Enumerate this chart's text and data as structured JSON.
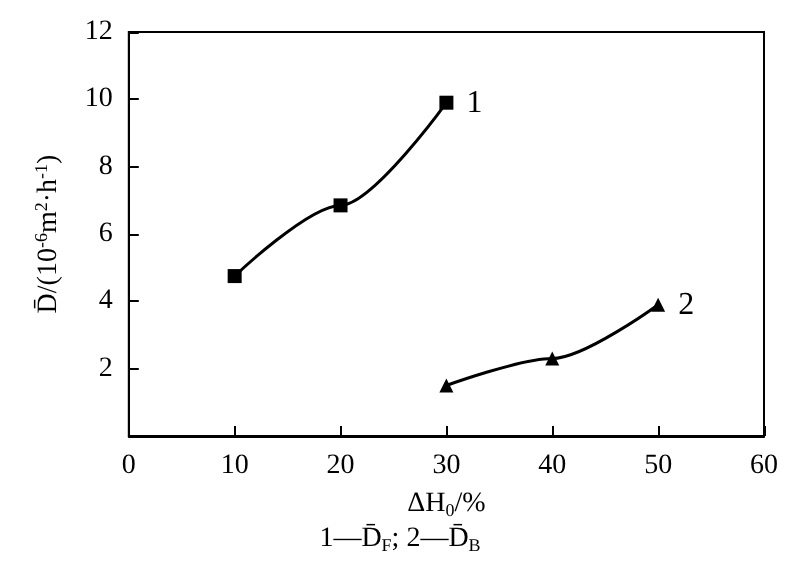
{
  "chart_data": {
    "type": "line",
    "xlabel": "ΔH$_{0}$/%",
    "ylabel": "D̄/(10$^{-6}$m$^{2}$·h$^{-1}$)",
    "annotations": [
      "1—D̄$_{F}$; 2—D̄$_{B}$"
    ],
    "xlim": [
      0,
      60
    ],
    "xticks": [
      0,
      10,
      20,
      30,
      40,
      50,
      60
    ],
    "ylim": [
      0,
      12
    ],
    "yticks": [
      2,
      4,
      6,
      8,
      10,
      12
    ],
    "grid": false,
    "legend": false,
    "series": [
      {
        "name": "1",
        "color": "#000000",
        "marker": "square",
        "x": [
          10,
          20,
          30
        ],
        "values": [
          4.75,
          6.85,
          9.9
        ]
      },
      {
        "name": "2",
        "color": "#000000",
        "marker": "triangle",
        "x": [
          30,
          40,
          50
        ],
        "values": [
          1.5,
          2.3,
          3.9
        ]
      }
    ]
  }
}
